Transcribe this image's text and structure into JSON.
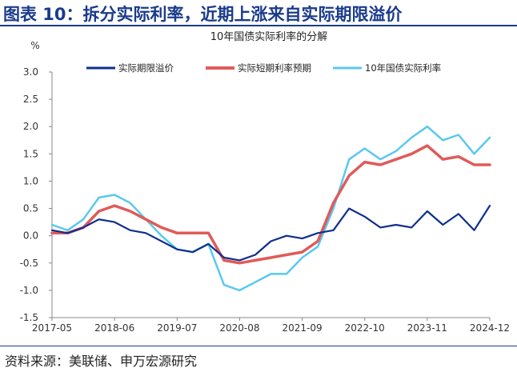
{
  "figure": {
    "title": "图表 10：拆分实际利率，近期上涨来自实际期限溢价",
    "source": "资料来源：美联储、申万宏源研究"
  },
  "chart_data": {
    "type": "line",
    "title": "10年国债实际利率的分解",
    "ylabel": "%",
    "ylim": [
      -1.5,
      3.0
    ],
    "yticks": [
      "3.0",
      "2.5",
      "2.0",
      "1.5",
      "1.0",
      "0.5",
      "0.0",
      "-0.5",
      "-1.0",
      "-1.5"
    ],
    "x": [
      "2017-05",
      "2017-08",
      "2017-11",
      "2018-02",
      "2018-06",
      "2018-09",
      "2018-12",
      "2019-03",
      "2019-07",
      "2019-10",
      "2020-01",
      "2020-04",
      "2020-08",
      "2020-11",
      "2021-02",
      "2021-05",
      "2021-09",
      "2021-12",
      "2022-03",
      "2022-06",
      "2022-10",
      "2023-01",
      "2023-04",
      "2023-07",
      "2023-11",
      "2024-02",
      "2024-05",
      "2024-08",
      "2024-12"
    ],
    "xticks": [
      "2017-05",
      "2018-06",
      "2019-07",
      "2020-08",
      "2021-09",
      "2022-10",
      "2023-11",
      "2024-12"
    ],
    "legend_position": "top",
    "grid": false,
    "series": [
      {
        "name": "实际期限溢价",
        "color": "#0e2f8c",
        "values": [
          0.1,
          0.05,
          0.15,
          0.3,
          0.25,
          0.1,
          0.05,
          -0.1,
          -0.25,
          -0.3,
          -0.15,
          -0.4,
          -0.45,
          -0.35,
          -0.1,
          0.0,
          -0.05,
          0.05,
          0.1,
          0.5,
          0.35,
          0.15,
          0.2,
          0.15,
          0.45,
          0.2,
          0.4,
          0.1,
          0.55
        ]
      },
      {
        "name": "实际短期利率预期",
        "color": "#e05a5a",
        "values": [
          0.05,
          0.05,
          0.15,
          0.45,
          0.55,
          0.45,
          0.3,
          0.15,
          0.05,
          0.05,
          0.05,
          -0.45,
          -0.5,
          -0.45,
          -0.4,
          -0.35,
          -0.3,
          -0.1,
          0.6,
          1.1,
          1.35,
          1.3,
          1.4,
          1.5,
          1.65,
          1.4,
          1.45,
          1.3,
          1.3
        ]
      },
      {
        "name": "10年国债实际利率",
        "color": "#5ac8f0",
        "values": [
          0.2,
          0.1,
          0.3,
          0.7,
          0.75,
          0.6,
          0.3,
          0.0,
          -0.25,
          -0.3,
          -0.15,
          -0.9,
          -1.0,
          -0.85,
          -0.7,
          -0.7,
          -0.4,
          -0.2,
          0.5,
          1.4,
          1.6,
          1.4,
          1.55,
          1.8,
          2.0,
          1.75,
          1.85,
          1.5,
          1.8
        ]
      }
    ]
  }
}
